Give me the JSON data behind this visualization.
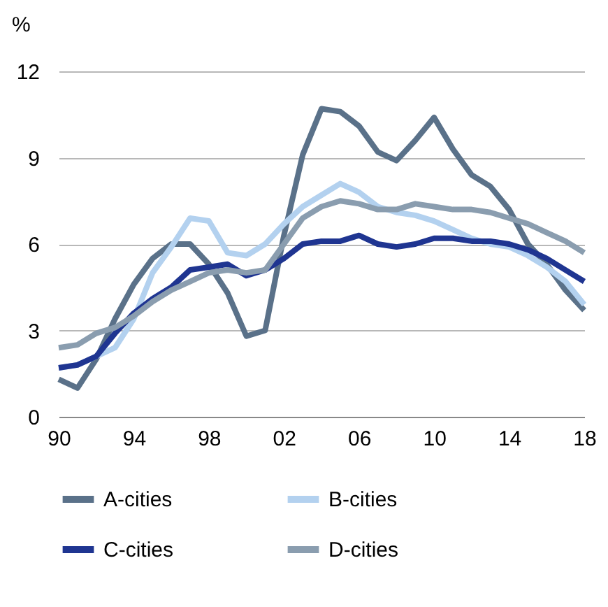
{
  "chart_data": {
    "type": "line",
    "ylabel": "%",
    "x": [
      1990,
      1991,
      1992,
      1993,
      1994,
      1995,
      1996,
      1997,
      1998,
      1999,
      2000,
      2001,
      2002,
      2003,
      2004,
      2005,
      2006,
      2007,
      2008,
      2009,
      2010,
      2011,
      2012,
      2013,
      2014,
      2015,
      2016,
      2017,
      2018
    ],
    "xlim": [
      1990,
      2018
    ],
    "xticks": [
      {
        "value": 1990,
        "label": "90"
      },
      {
        "value": 1994,
        "label": "94"
      },
      {
        "value": 1998,
        "label": "98"
      },
      {
        "value": 2002,
        "label": "02"
      },
      {
        "value": 2006,
        "label": "06"
      },
      {
        "value": 2010,
        "label": "10"
      },
      {
        "value": 2014,
        "label": "14"
      },
      {
        "value": 2018,
        "label": "18"
      }
    ],
    "ylim": [
      0,
      12
    ],
    "yticks": [
      0,
      3,
      6,
      9,
      12
    ],
    "grid": "y",
    "legend": "bottom",
    "marker": "none",
    "line_style": "solid",
    "series": [
      {
        "name": "A-cities",
        "color": "#5a7189",
        "values": [
          1.3,
          1.0,
          2.0,
          3.4,
          4.6,
          5.5,
          6.0,
          6.0,
          5.3,
          4.3,
          2.8,
          3.0,
          6.3,
          9.1,
          10.7,
          10.6,
          10.1,
          9.2,
          8.9,
          9.6,
          10.4,
          9.3,
          8.4,
          8.0,
          7.2,
          6.0,
          5.3,
          4.4,
          3.7
        ]
      },
      {
        "name": "B-cities",
        "color": "#b3d1ef",
        "values": [
          1.7,
          1.8,
          2.1,
          2.4,
          3.4,
          5.0,
          5.9,
          6.9,
          6.8,
          5.7,
          5.6,
          6.0,
          6.7,
          7.3,
          7.7,
          8.1,
          7.8,
          7.3,
          7.1,
          7.0,
          6.8,
          6.5,
          6.2,
          6.0,
          5.9,
          5.6,
          5.2,
          4.7,
          3.9
        ]
      },
      {
        "name": "C-cities",
        "color": "#1f3591",
        "values": [
          1.7,
          1.8,
          2.1,
          2.9,
          3.6,
          4.1,
          4.5,
          5.1,
          5.2,
          5.3,
          4.9,
          5.1,
          5.5,
          6.0,
          6.1,
          6.1,
          6.3,
          6.0,
          5.9,
          6.0,
          6.2,
          6.2,
          6.1,
          6.1,
          6.0,
          5.8,
          5.5,
          5.1,
          4.7
        ]
      },
      {
        "name": "D-cities",
        "color": "#8a9daf",
        "values": [
          2.4,
          2.5,
          2.9,
          3.1,
          3.5,
          4.0,
          4.4,
          4.7,
          5.0,
          5.1,
          5.0,
          5.1,
          6.0,
          6.9,
          7.3,
          7.5,
          7.4,
          7.2,
          7.2,
          7.4,
          7.3,
          7.2,
          7.2,
          7.1,
          6.9,
          6.7,
          6.4,
          6.1,
          5.7
        ]
      }
    ]
  }
}
